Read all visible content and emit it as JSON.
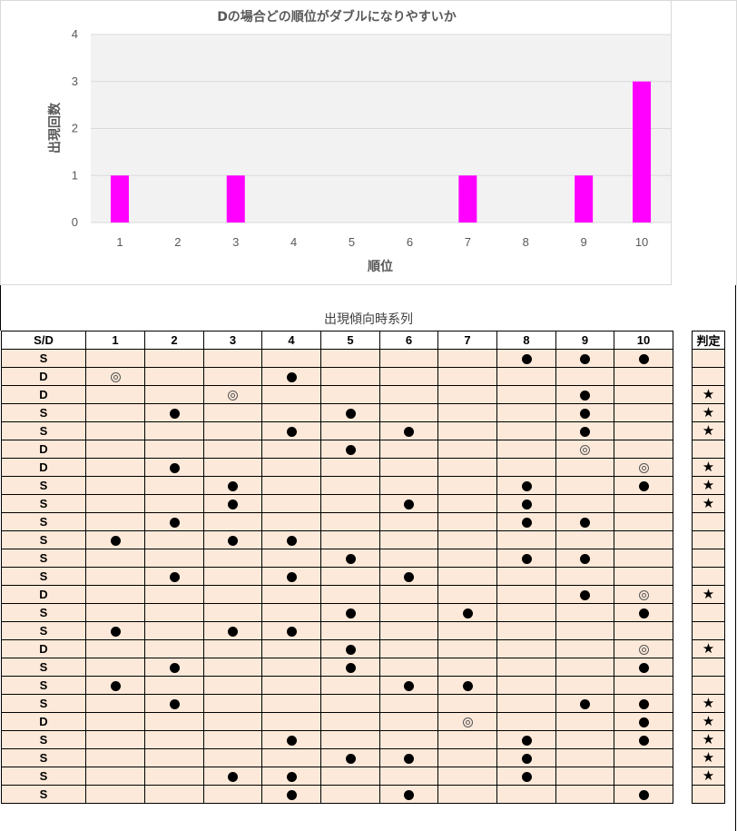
{
  "chart_data": {
    "type": "bar",
    "title": "Dの場合どの順位がダブルになりやすいか",
    "xlabel": "順位",
    "ylabel": "出現回数",
    "categories": [
      "1",
      "2",
      "3",
      "4",
      "5",
      "6",
      "7",
      "8",
      "9",
      "10"
    ],
    "values": [
      1,
      0,
      1,
      0,
      0,
      0,
      1,
      0,
      1,
      3
    ],
    "ylim": [
      0,
      4
    ],
    "yticks": [
      "0",
      "1",
      "2",
      "3",
      "4"
    ],
    "grid": true,
    "bar_color": "#ff00ff",
    "plot_bg": "#f2f2f2"
  },
  "table": {
    "title": "出現傾向時系列",
    "header": [
      "S/D",
      "1",
      "2",
      "3",
      "4",
      "5",
      "6",
      "7",
      "8",
      "9",
      "10"
    ],
    "judge_header": "判定",
    "legend": {
      "dot": "●",
      "double": "◎",
      "star": "★"
    },
    "rows": [
      {
        "sd": "S",
        "cells": [
          "",
          "",
          "",
          "",
          "",
          "",
          "",
          "●",
          "●",
          "●"
        ],
        "judge": ""
      },
      {
        "sd": "D",
        "cells": [
          "◎",
          "",
          "",
          "●",
          "",
          "",
          "",
          "",
          "",
          ""
        ],
        "judge": ""
      },
      {
        "sd": "D",
        "cells": [
          "",
          "",
          "◎",
          "",
          "",
          "",
          "",
          "",
          "●",
          ""
        ],
        "judge": "★"
      },
      {
        "sd": "S",
        "cells": [
          "",
          "●",
          "",
          "",
          "●",
          "",
          "",
          "",
          "●",
          ""
        ],
        "judge": "★"
      },
      {
        "sd": "S",
        "cells": [
          "",
          "",
          "",
          "●",
          "",
          "●",
          "",
          "",
          "●",
          ""
        ],
        "judge": "★"
      },
      {
        "sd": "D",
        "cells": [
          "",
          "",
          "",
          "",
          "●",
          "",
          "",
          "",
          "◎",
          ""
        ],
        "judge": ""
      },
      {
        "sd": "D",
        "cells": [
          "",
          "●",
          "",
          "",
          "",
          "",
          "",
          "",
          "",
          "◎"
        ],
        "judge": "★"
      },
      {
        "sd": "S",
        "cells": [
          "",
          "",
          "●",
          "",
          "",
          "",
          "",
          "●",
          "",
          "●"
        ],
        "judge": "★"
      },
      {
        "sd": "S",
        "cells": [
          "",
          "",
          "●",
          "",
          "",
          "●",
          "",
          "●",
          "",
          ""
        ],
        "judge": "★"
      },
      {
        "sd": "S",
        "cells": [
          "",
          "●",
          "",
          "",
          "",
          "",
          "",
          "●",
          "●",
          ""
        ],
        "judge": ""
      },
      {
        "sd": "S",
        "cells": [
          "●",
          "",
          "●",
          "●",
          "",
          "",
          "",
          "",
          "",
          ""
        ],
        "judge": ""
      },
      {
        "sd": "S",
        "cells": [
          "",
          "",
          "",
          "",
          "●",
          "",
          "",
          "●",
          "●",
          ""
        ],
        "judge": ""
      },
      {
        "sd": "S",
        "cells": [
          "",
          "●",
          "",
          "●",
          "",
          "●",
          "",
          "",
          "",
          ""
        ],
        "judge": ""
      },
      {
        "sd": "D",
        "cells": [
          "",
          "",
          "",
          "",
          "",
          "",
          "",
          "",
          "●",
          "◎"
        ],
        "judge": "★"
      },
      {
        "sd": "S",
        "cells": [
          "",
          "",
          "",
          "",
          "●",
          "",
          "●",
          "",
          "",
          "●"
        ],
        "judge": ""
      },
      {
        "sd": "S",
        "cells": [
          "●",
          "",
          "●",
          "●",
          "",
          "",
          "",
          "",
          "",
          ""
        ],
        "judge": ""
      },
      {
        "sd": "D",
        "cells": [
          "",
          "",
          "",
          "",
          "●",
          "",
          "",
          "",
          "",
          "◎"
        ],
        "judge": "★"
      },
      {
        "sd": "S",
        "cells": [
          "",
          "●",
          "",
          "",
          "●",
          "",
          "",
          "",
          "",
          "●"
        ],
        "judge": ""
      },
      {
        "sd": "S",
        "cells": [
          "●",
          "",
          "",
          "",
          "",
          "●",
          "●",
          "",
          "",
          ""
        ],
        "judge": ""
      },
      {
        "sd": "S",
        "cells": [
          "",
          "●",
          "",
          "",
          "",
          "",
          "",
          "",
          "●",
          "●"
        ],
        "judge": "★"
      },
      {
        "sd": "D",
        "cells": [
          "",
          "",
          "",
          "",
          "",
          "",
          "◎",
          "",
          "",
          "●"
        ],
        "judge": "★"
      },
      {
        "sd": "S",
        "cells": [
          "",
          "",
          "",
          "●",
          "",
          "",
          "",
          "●",
          "",
          "●"
        ],
        "judge": "★"
      },
      {
        "sd": "S",
        "cells": [
          "",
          "",
          "",
          "",
          "●",
          "●",
          "",
          "●",
          "",
          ""
        ],
        "judge": "★"
      },
      {
        "sd": "S",
        "cells": [
          "",
          "",
          "●",
          "●",
          "",
          "",
          "",
          "●",
          "",
          ""
        ],
        "judge": "★"
      },
      {
        "sd": "S",
        "cells": [
          "",
          "",
          "",
          "●",
          "",
          "●",
          "",
          "",
          "",
          "●"
        ],
        "judge": ""
      }
    ]
  }
}
